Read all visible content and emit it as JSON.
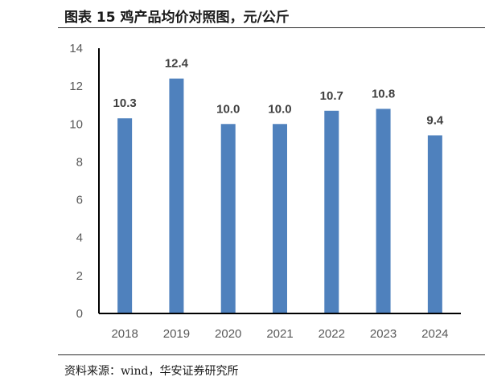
{
  "header": {
    "title": "图表 15 鸡产品均价对照图，元/公斤"
  },
  "footer": {
    "source": "资料来源：wind，华安证券研究所"
  },
  "chart_data": {
    "type": "bar",
    "categories": [
      "2018",
      "2019",
      "2020",
      "2021",
      "2022",
      "2023",
      "2024"
    ],
    "values": [
      10.3,
      12.4,
      10.0,
      10.0,
      10.7,
      10.8,
      9.4
    ],
    "value_labels": [
      "10.3",
      "12.4",
      "10.0",
      "10.0",
      "10.7",
      "10.8",
      "9.4"
    ],
    "title": "",
    "xlabel": "",
    "ylabel": "",
    "ylim": [
      0,
      14
    ],
    "yticks": [
      0,
      2,
      4,
      6,
      8,
      10,
      12,
      14
    ],
    "grid": false,
    "legend": "none",
    "bar_color": "#4f81bd",
    "axis_color": "#000000"
  }
}
